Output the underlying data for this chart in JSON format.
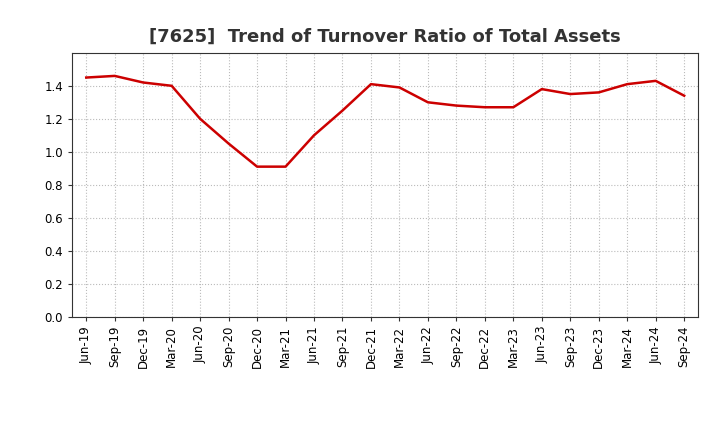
{
  "title": "[7625]  Trend of Turnover Ratio of Total Assets",
  "x_labels": [
    "Jun-19",
    "Sep-19",
    "Dec-19",
    "Mar-20",
    "Jun-20",
    "Sep-20",
    "Dec-20",
    "Mar-21",
    "Jun-21",
    "Sep-21",
    "Dec-21",
    "Mar-22",
    "Jun-22",
    "Sep-22",
    "Dec-22",
    "Mar-23",
    "Jun-23",
    "Sep-23",
    "Dec-23",
    "Mar-24",
    "Jun-24",
    "Sep-24"
  ],
  "y_values": [
    1.45,
    1.46,
    1.42,
    1.4,
    1.2,
    1.05,
    0.91,
    0.91,
    1.1,
    1.25,
    1.41,
    1.39,
    1.3,
    1.28,
    1.27,
    1.27,
    1.38,
    1.35,
    1.36,
    1.41,
    1.43,
    1.34
  ],
  "line_color": "#cc0000",
  "line_width": 1.8,
  "ylim": [
    0.0,
    1.6
  ],
  "yticks": [
    0.0,
    0.2,
    0.4,
    0.6,
    0.8,
    1.0,
    1.2,
    1.4
  ],
  "grid_color": "#bbbbbb",
  "grid_linestyle": ":",
  "background_color": "#ffffff",
  "title_fontsize": 13,
  "tick_fontsize": 8.5
}
